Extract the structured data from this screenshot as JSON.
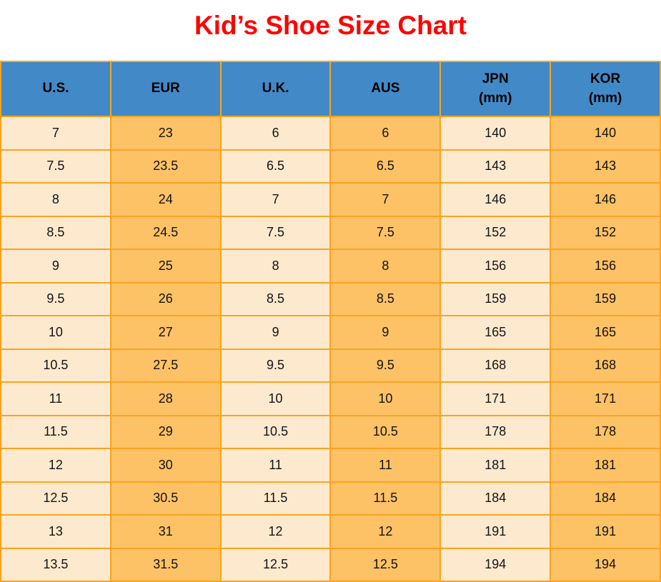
{
  "title": {
    "text": "Kid’s Shoe Size Chart",
    "color": "#ff0000"
  },
  "colors": {
    "header_bg": "#4289c7",
    "row_cream": "#fde9ce",
    "row_orange": "#fdc166",
    "grid_border": "#fba41e",
    "header_text": "#000000",
    "cell_text": "#141414",
    "title_red": "#ff0000",
    "page_bg": "#ffffff"
  },
  "table": {
    "headers": [
      {
        "line1": "U.S.",
        "line2": ""
      },
      {
        "line1": "EUR",
        "line2": ""
      },
      {
        "line1": "U.K.",
        "line2": ""
      },
      {
        "line1": "AUS",
        "line2": ""
      },
      {
        "line1": "JPN",
        "line2": "(mm)"
      },
      {
        "line1": "KOR",
        "line2": "(mm)"
      }
    ]
  },
  "chart_data": {
    "type": "table",
    "title": "Kid’s Shoe Size Chart",
    "columns": [
      "U.S.",
      "EUR",
      "U.K.",
      "AUS",
      "JPN (mm)",
      "KOR (mm)"
    ],
    "rows": [
      [
        "7",
        "23",
        "6",
        "6",
        "140",
        "140"
      ],
      [
        "7.5",
        "23.5",
        "6.5",
        "6.5",
        "143",
        "143"
      ],
      [
        "8",
        "24",
        "7",
        "7",
        "146",
        "146"
      ],
      [
        "8.5",
        "24.5",
        "7.5",
        "7.5",
        "152",
        "152"
      ],
      [
        "9",
        "25",
        "8",
        "8",
        "156",
        "156"
      ],
      [
        "9.5",
        "26",
        "8.5",
        "8.5",
        "159",
        "159"
      ],
      [
        "10",
        "27",
        "9",
        "9",
        "165",
        "165"
      ],
      [
        "10.5",
        "27.5",
        "9.5",
        "9.5",
        "168",
        "168"
      ],
      [
        "11",
        "28",
        "10",
        "10",
        "171",
        "171"
      ],
      [
        "11.5",
        "29",
        "10.5",
        "10.5",
        "178",
        "178"
      ],
      [
        "12",
        "30",
        "11",
        "11",
        "181",
        "181"
      ],
      [
        "12.5",
        "30.5",
        "11.5",
        "11.5",
        "184",
        "184"
      ],
      [
        "13",
        "31",
        "12",
        "12",
        "191",
        "191"
      ],
      [
        "13.5",
        "31.5",
        "12.5",
        "12.5",
        "194",
        "194"
      ]
    ]
  }
}
